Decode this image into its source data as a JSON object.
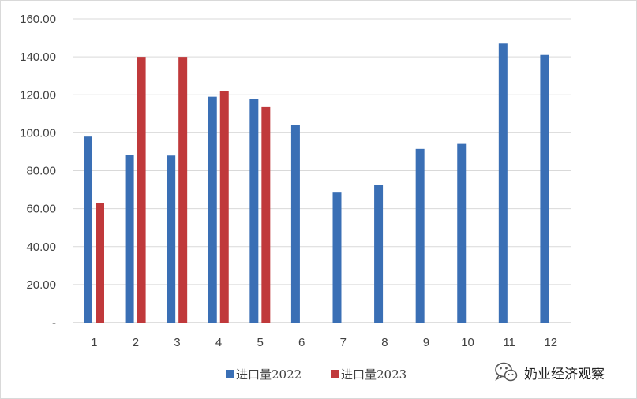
{
  "chart_data": {
    "type": "bar",
    "title": "",
    "xlabel": "",
    "ylabel": "",
    "categories": [
      "1",
      "2",
      "3",
      "4",
      "5",
      "6",
      "7",
      "8",
      "9",
      "10",
      "11",
      "12"
    ],
    "series": [
      {
        "name": "进口量2022",
        "color": "#3a6fb5",
        "values": [
          98.0,
          88.5,
          88.0,
          119.0,
          118.0,
          104.0,
          68.5,
          72.5,
          91.5,
          94.5,
          147.0,
          141.0
        ]
      },
      {
        "name": "进口量2023",
        "color": "#c0393b",
        "values": [
          63.0,
          140.0,
          140.0,
          122.0,
          113.5,
          null,
          null,
          null,
          null,
          null,
          null,
          null
        ]
      }
    ],
    "ylim": [
      0,
      160
    ],
    "yticks": [
      0,
      20,
      40,
      60,
      80,
      100,
      120,
      140,
      160
    ],
    "ytick_labels": [
      "-",
      "20.00",
      "40.00",
      "60.00",
      "80.00",
      "100.00",
      "120.00",
      "140.00",
      "160.00"
    ],
    "grid": true,
    "legend_position": "bottom"
  },
  "watermark": {
    "text": "奶业经济观察",
    "icon": "wechat-icon"
  }
}
